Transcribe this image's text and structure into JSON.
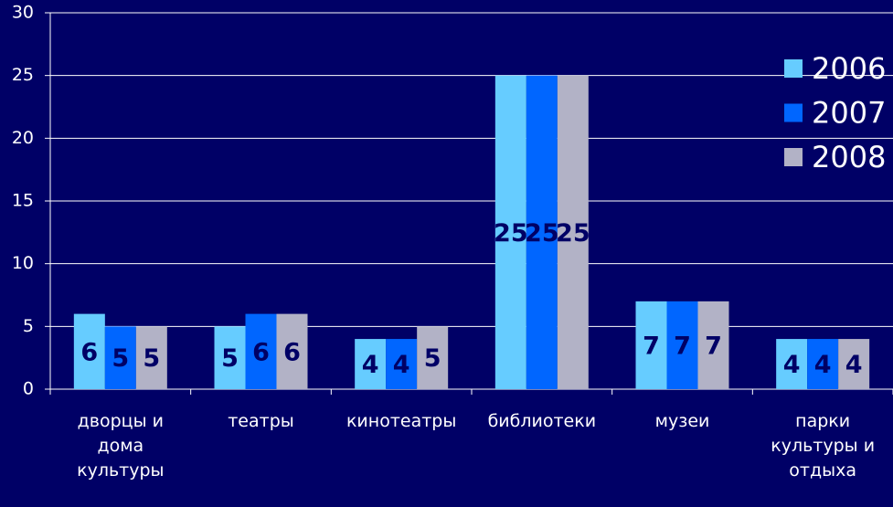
{
  "chart_data": {
    "type": "bar",
    "categories": [
      "дворцы и дома культуры",
      "театры",
      "кинотеатры",
      "библиотеки",
      "музеи",
      "парки культуры и отдыха"
    ],
    "series": [
      {
        "name": "2006",
        "color": "#66ccff",
        "values": [
          6,
          5,
          4,
          25,
          7,
          4
        ]
      },
      {
        "name": "2007",
        "color": "#0066ff",
        "values": [
          5,
          6,
          4,
          25,
          7,
          4
        ]
      },
      {
        "name": "2008",
        "color": "#b2b2c6",
        "values": [
          5,
          6,
          5,
          25,
          7,
          4
        ]
      }
    ],
    "ylim": [
      0,
      30
    ],
    "yticks": [
      0,
      5,
      10,
      15,
      20,
      25,
      30
    ],
    "grid": true,
    "legend": "right"
  }
}
